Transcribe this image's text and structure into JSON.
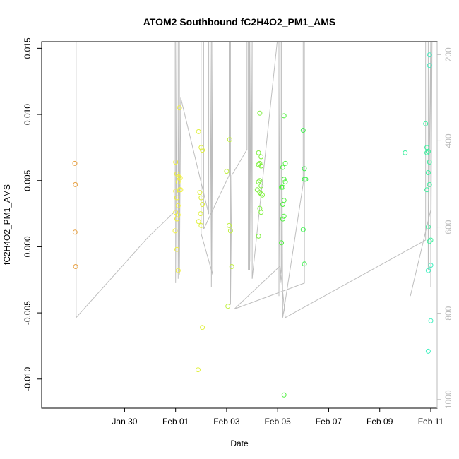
{
  "chart_data": {
    "type": "scatter",
    "title": "ATOM2 Southbound fC2H4O2_PM1_AMS",
    "xlabel": "Date",
    "ylabel": "fC2H4O2_PM1_AMS",
    "x_unit": "days since Jan 29 00:00",
    "xlim": [
      -2.25,
      13.25
    ],
    "ylim": [
      -0.0122,
      0.0155
    ],
    "y2lim": [
      1020,
      170
    ],
    "x_ticks": [
      {
        "x": 1,
        "label": "Jan 30"
      },
      {
        "x": 3,
        "label": "Feb 01"
      },
      {
        "x": 5,
        "label": "Feb 03"
      },
      {
        "x": 7,
        "label": "Feb 05"
      },
      {
        "x": 9,
        "label": "Feb 07"
      },
      {
        "x": 11,
        "label": "Feb 09"
      },
      {
        "x": 13,
        "label": "Feb 11"
      }
    ],
    "y_ticks": [
      {
        "v": -0.01,
        "label": "-0.010"
      },
      {
        "v": -0.005,
        "label": "-0.005"
      },
      {
        "v": 0.0,
        "label": "0.000"
      },
      {
        "v": 0.005,
        "label": "0.005"
      },
      {
        "v": 0.01,
        "label": "0.010"
      },
      {
        "v": 0.015,
        "label": "0.015"
      }
    ],
    "y2_ticks": [
      {
        "v": 200,
        "label": "200"
      },
      {
        "v": 400,
        "label": "400"
      },
      {
        "v": 600,
        "label": "600"
      },
      {
        "v": 800,
        "label": "800"
      },
      {
        "v": 1000,
        "label": "1000"
      }
    ],
    "line_color": "#bebebe",
    "altitude_track": [
      [
        -0.9,
        160
      ],
      [
        -0.9,
        810
      ],
      [
        1.9,
        625
      ],
      [
        2.95,
        565
      ],
      [
        2.95,
        160
      ],
      [
        3.0,
        160
      ],
      [
        3.0,
        730
      ],
      [
        3.05,
        160
      ],
      [
        3.1,
        160
      ],
      [
        3.1,
        720
      ],
      [
        3.15,
        160
      ],
      [
        3.15,
        710
      ],
      [
        3.2,
        300
      ],
      [
        4.3,
        570
      ],
      [
        4.3,
        160
      ],
      [
        4.35,
        160
      ],
      [
        4.35,
        700
      ],
      [
        4.4,
        160
      ],
      [
        4.4,
        740
      ],
      [
        4.45,
        160
      ],
      [
        4.45,
        710
      ],
      [
        4.0,
        615
      ],
      [
        4.0,
        160
      ],
      [
        4.1,
        160
      ],
      [
        4.1,
        605
      ],
      [
        5.1,
        480
      ],
      [
        5.1,
        160
      ],
      [
        5.15,
        160
      ],
      [
        5.15,
        780
      ],
      [
        5.2,
        480
      ],
      [
        5.8,
        420
      ],
      [
        5.8,
        160
      ],
      [
        5.85,
        160
      ],
      [
        5.85,
        700
      ],
      [
        5.9,
        160
      ],
      [
        5.9,
        700
      ],
      [
        5.95,
        160
      ],
      [
        5.95,
        680
      ],
      [
        6.0,
        160
      ],
      [
        6.0,
        720
      ],
      [
        7.0,
        160
      ],
      [
        7.05,
        160
      ],
      [
        7.05,
        760
      ],
      [
        7.1,
        160
      ],
      [
        7.1,
        730
      ],
      [
        7.15,
        700
      ],
      [
        7.15,
        160
      ],
      [
        7.2,
        810
      ],
      [
        8.0,
        500
      ],
      [
        8.0,
        160
      ],
      [
        8.05,
        160
      ],
      [
        8.05,
        730
      ],
      [
        5.3,
        790
      ],
      [
        7.1,
        690
      ],
      [
        7.3,
        810
      ],
      [
        12.8,
        630
      ],
      [
        12.8,
        160
      ],
      [
        12.9,
        160
      ],
      [
        12.9,
        700
      ],
      [
        13.0,
        160
      ],
      [
        13.0,
        740
      ],
      [
        13.05,
        160
      ],
      [
        13.0,
        560
      ],
      [
        12.2,
        760
      ]
    ],
    "series": [
      {
        "color": "#e8a040",
        "points": [
          [
            -0.95,
            0.0063
          ],
          [
            -0.93,
            0.0047
          ],
          [
            -0.94,
            0.0011
          ],
          [
            -0.92,
            -0.0015
          ]
        ]
      },
      {
        "color": "#f0f040",
        "points": [
          [
            3.0,
            0.0064
          ],
          [
            3.05,
            0.0055
          ],
          [
            3.1,
            0.0049
          ],
          [
            3.15,
            0.0043
          ],
          [
            3.0,
            0.0042
          ],
          [
            3.2,
            0.0043
          ],
          [
            3.05,
            0.0037
          ],
          [
            3.1,
            0.0031
          ],
          [
            3.0,
            0.0026
          ],
          [
            3.1,
            0.0024
          ],
          [
            3.05,
            0.0021
          ],
          [
            2.98,
            0.0012
          ],
          [
            3.05,
            -0.0002
          ],
          [
            3.1,
            -0.0018
          ],
          [
            3.15,
            0.0105
          ],
          [
            3.12,
            0.0053
          ],
          [
            3.18,
            0.0052
          ]
        ]
      },
      {
        "color": "#e0f040",
        "points": [
          [
            3.9,
            0.0087
          ],
          [
            4.0,
            0.0075
          ],
          [
            4.05,
            0.0073
          ],
          [
            3.95,
            0.0041
          ],
          [
            4.0,
            0.0037
          ],
          [
            4.05,
            0.0032
          ],
          [
            3.98,
            0.0025
          ],
          [
            3.9,
            0.0019
          ],
          [
            4.0,
            0.0016
          ],
          [
            4.05,
            -0.0061
          ],
          [
            3.88,
            -0.0093
          ]
        ]
      },
      {
        "color": "#c0f040",
        "points": [
          [
            5.0,
            0.0057
          ],
          [
            5.12,
            0.0081
          ],
          [
            5.1,
            0.0016
          ],
          [
            5.15,
            0.0012
          ],
          [
            5.05,
            -0.0045
          ],
          [
            5.2,
            -0.0015
          ]
        ]
      },
      {
        "color": "#80f040",
        "points": [
          [
            6.3,
            0.0101
          ],
          [
            6.25,
            0.0071
          ],
          [
            6.35,
            0.0068
          ],
          [
            6.3,
            0.0063
          ],
          [
            6.25,
            0.0062
          ],
          [
            6.35,
            0.0061
          ],
          [
            6.3,
            0.005
          ],
          [
            6.25,
            0.0049
          ],
          [
            6.35,
            0.0046
          ],
          [
            6.2,
            0.0043
          ],
          [
            6.3,
            0.0041
          ],
          [
            6.35,
            0.004
          ],
          [
            6.4,
            0.0039
          ],
          [
            6.3,
            0.0029
          ],
          [
            6.35,
            0.0026
          ],
          [
            6.25,
            0.0008
          ]
        ]
      },
      {
        "color": "#50f040",
        "points": [
          [
            7.25,
            0.0099
          ],
          [
            7.2,
            0.006
          ],
          [
            7.3,
            0.0063
          ],
          [
            7.25,
            0.0051
          ],
          [
            7.3,
            0.0049
          ],
          [
            7.15,
            0.0045
          ],
          [
            7.2,
            0.0045
          ],
          [
            7.25,
            0.0035
          ],
          [
            7.2,
            0.0032
          ],
          [
            7.25,
            0.0023
          ],
          [
            7.2,
            0.0021
          ],
          [
            7.15,
            0.0003
          ],
          [
            7.25,
            -0.0112
          ]
        ]
      },
      {
        "color": "#40f050",
        "points": [
          [
            8.0,
            0.0088
          ],
          [
            8.05,
            0.0059
          ],
          [
            8.05,
            0.0051
          ],
          [
            8.1,
            0.0051
          ],
          [
            8.0,
            0.0013
          ],
          [
            8.05,
            -0.0013
          ]
        ]
      },
      {
        "color": "#40f0a0",
        "points": [
          [
            12.0,
            0.0071
          ],
          [
            12.8,
            0.0093
          ],
          [
            12.85,
            0.0075
          ],
          [
            12.9,
            0.0072
          ],
          [
            12.85,
            0.0071
          ],
          [
            12.95,
            0.0064
          ],
          [
            12.9,
            0.0056
          ],
          [
            12.95,
            0.0047
          ],
          [
            12.85,
            0.0043
          ],
          [
            12.9,
            0.0015
          ],
          [
            12.95,
            0.0004
          ],
          [
            13.0,
            0.0005
          ]
        ]
      },
      {
        "color": "#40f0c0",
        "points": [
          [
            12.95,
            0.0145
          ],
          [
            12.95,
            0.0137
          ],
          [
            12.9,
            -0.0018
          ],
          [
            13.0,
            -0.0014
          ],
          [
            13.0,
            -0.0056
          ],
          [
            12.9,
            -0.0079
          ]
        ]
      }
    ]
  }
}
